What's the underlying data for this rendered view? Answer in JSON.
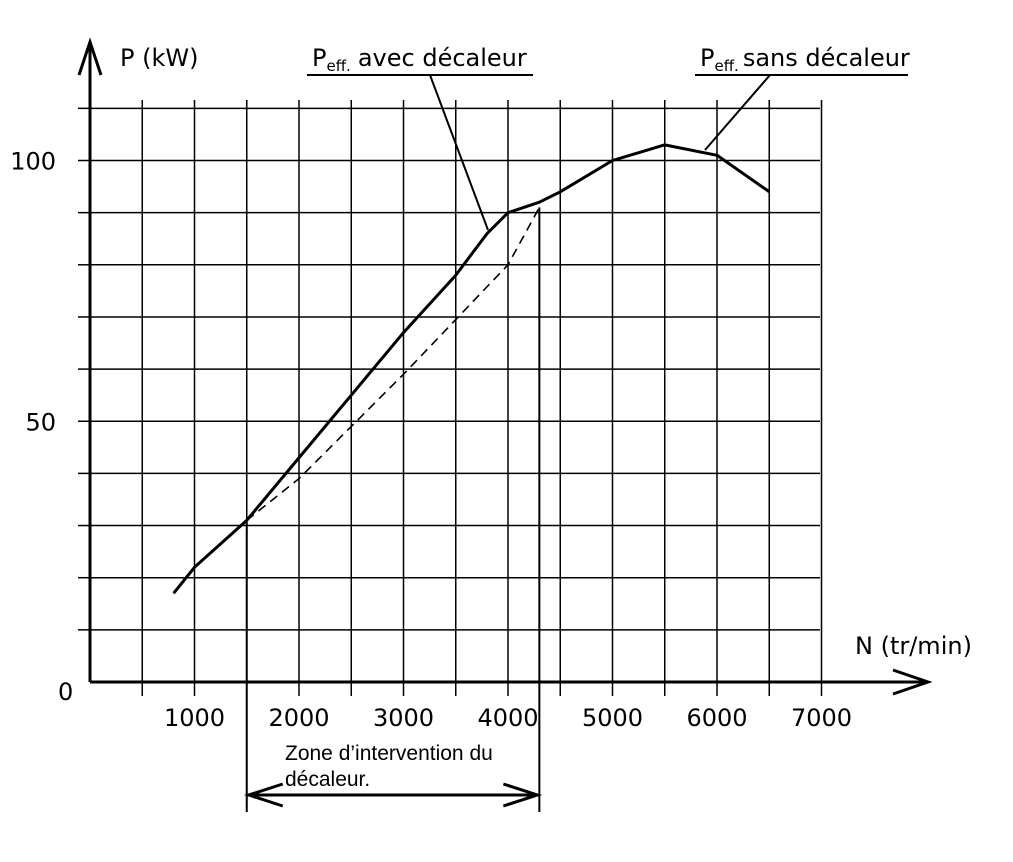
{
  "chart_data": {
    "type": "line",
    "xlabel": "N (tr/min)",
    "ylabel": "P (kW)",
    "origin_label": "0",
    "xlim": [
      0,
      7000
    ],
    "ylim": [
      0,
      110
    ],
    "x_ticks": [
      1000,
      2000,
      3000,
      4000,
      5000,
      6000,
      7000
    ],
    "y_ticks": [
      50,
      100
    ],
    "x_grid_step": 500,
    "y_grid_step": 10,
    "grid": true,
    "series": [
      {
        "name": "P",
        "name_sub": "eff.",
        "name_rest": "avec décaleur",
        "style": "solid",
        "x": [
          800,
          1000,
          1500,
          2000,
          2500,
          3000,
          3500,
          3800,
          4000,
          4300,
          4500,
          5000,
          5500,
          6000,
          6500
        ],
        "y": [
          17,
          22,
          31,
          43,
          55,
          67,
          78,
          86,
          90,
          92,
          94,
          100,
          103,
          101,
          94
        ]
      },
      {
        "name": "P",
        "name_sub": "eff.",
        "name_rest": "sans décaleur",
        "style": "dashed",
        "x": [
          1500,
          2000,
          3000,
          4000,
          4300
        ],
        "y": [
          31,
          39,
          59,
          80,
          91
        ]
      }
    ],
    "annotation": {
      "line1": "Zone d’intervention du",
      "line2": "décaleur.",
      "x_range": [
        1500,
        4300
      ]
    }
  }
}
